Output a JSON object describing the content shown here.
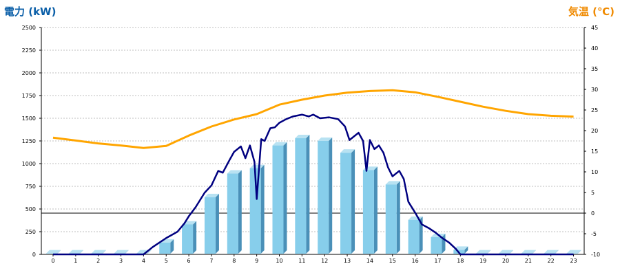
{
  "chart_data": {
    "type": "bar+line",
    "left_axis": {
      "label": "電力 (kW)",
      "ylim": [
        0,
        2500
      ],
      "ticks": [
        0,
        250,
        500,
        750,
        1000,
        1250,
        1500,
        1750,
        2000,
        2250,
        2500
      ]
    },
    "right_axis": {
      "label": "気温 (℃)",
      "ylim": [
        -10,
        45
      ],
      "ticks": [
        -10,
        -5,
        0,
        5,
        10,
        15,
        20,
        25,
        30,
        35,
        40,
        45
      ]
    },
    "categories": [
      "0",
      "1",
      "2",
      "3",
      "4",
      "5",
      "6",
      "7",
      "8",
      "9",
      "10",
      "11",
      "12",
      "13",
      "14",
      "15",
      "16",
      "17",
      "18",
      "19",
      "20",
      "21",
      "22",
      "23"
    ],
    "grid": true,
    "bar_values": [
      10,
      10,
      10,
      10,
      10,
      130,
      330,
      630,
      890,
      950,
      1200,
      1280,
      1250,
      1120,
      930,
      770,
      380,
      190,
      50,
      10,
      10,
      10,
      10,
      10
    ],
    "temperature": [
      [
        0,
        18.3
      ],
      [
        1,
        17.6
      ],
      [
        2,
        16.9
      ],
      [
        3,
        16.4
      ],
      [
        4,
        15.8
      ],
      [
        5,
        16.3
      ],
      [
        6,
        18.8
      ],
      [
        7,
        21.0
      ],
      [
        8,
        22.7
      ],
      [
        9,
        24.0
      ],
      [
        10,
        26.3
      ],
      [
        11,
        27.5
      ],
      [
        12,
        28.5
      ],
      [
        13,
        29.2
      ],
      [
        14,
        29.6
      ],
      [
        15,
        29.8
      ],
      [
        16,
        29.3
      ],
      [
        17,
        28.2
      ],
      [
        18,
        27.0
      ],
      [
        19,
        25.8
      ],
      [
        20,
        24.8
      ],
      [
        21,
        24.0
      ],
      [
        22,
        23.6
      ],
      [
        23,
        23.4
      ]
    ],
    "power_line": [
      [
        0,
        0
      ],
      [
        4,
        0
      ],
      [
        4.4,
        80
      ],
      [
        5,
        180
      ],
      [
        5.5,
        250
      ],
      [
        5.8,
        340
      ],
      [
        6,
        420
      ],
      [
        6.3,
        520
      ],
      [
        6.7,
        680
      ],
      [
        7,
        760
      ],
      [
        7.3,
        920
      ],
      [
        7.5,
        900
      ],
      [
        7.8,
        1040
      ],
      [
        8,
        1130
      ],
      [
        8.3,
        1190
      ],
      [
        8.5,
        1060
      ],
      [
        8.7,
        1200
      ],
      [
        8.9,
        1020
      ],
      [
        9,
        610
      ],
      [
        9.2,
        1270
      ],
      [
        9.35,
        1250
      ],
      [
        9.6,
        1390
      ],
      [
        9.8,
        1400
      ],
      [
        10,
        1450
      ],
      [
        10.3,
        1490
      ],
      [
        10.6,
        1520
      ],
      [
        11,
        1540
      ],
      [
        11.3,
        1520
      ],
      [
        11.5,
        1540
      ],
      [
        11.8,
        1500
      ],
      [
        12.2,
        1510
      ],
      [
        12.6,
        1490
      ],
      [
        12.9,
        1410
      ],
      [
        13.1,
        1260
      ],
      [
        13.3,
        1300
      ],
      [
        13.5,
        1340
      ],
      [
        13.7,
        1250
      ],
      [
        13.85,
        920
      ],
      [
        14,
        1260
      ],
      [
        14.2,
        1160
      ],
      [
        14.4,
        1200
      ],
      [
        14.6,
        1120
      ],
      [
        14.8,
        960
      ],
      [
        15,
        860
      ],
      [
        15.3,
        920
      ],
      [
        15.5,
        830
      ],
      [
        15.7,
        580
      ],
      [
        16,
        460
      ],
      [
        16.3,
        330
      ],
      [
        16.6,
        290
      ],
      [
        16.9,
        240
      ],
      [
        17.2,
        180
      ],
      [
        17.5,
        130
      ],
      [
        17.8,
        60
      ],
      [
        18,
        0
      ],
      [
        23,
        0
      ]
    ],
    "colors": {
      "bar": "#87ceeb",
      "bar_side": "#4a90b8",
      "bar_top": "#b8e2f2",
      "power_line": "#000080",
      "temperature_line": "#ffa500",
      "left_label": "#0b5fa8",
      "right_label": "#f08a00",
      "grid": "#bfbfbf"
    }
  }
}
